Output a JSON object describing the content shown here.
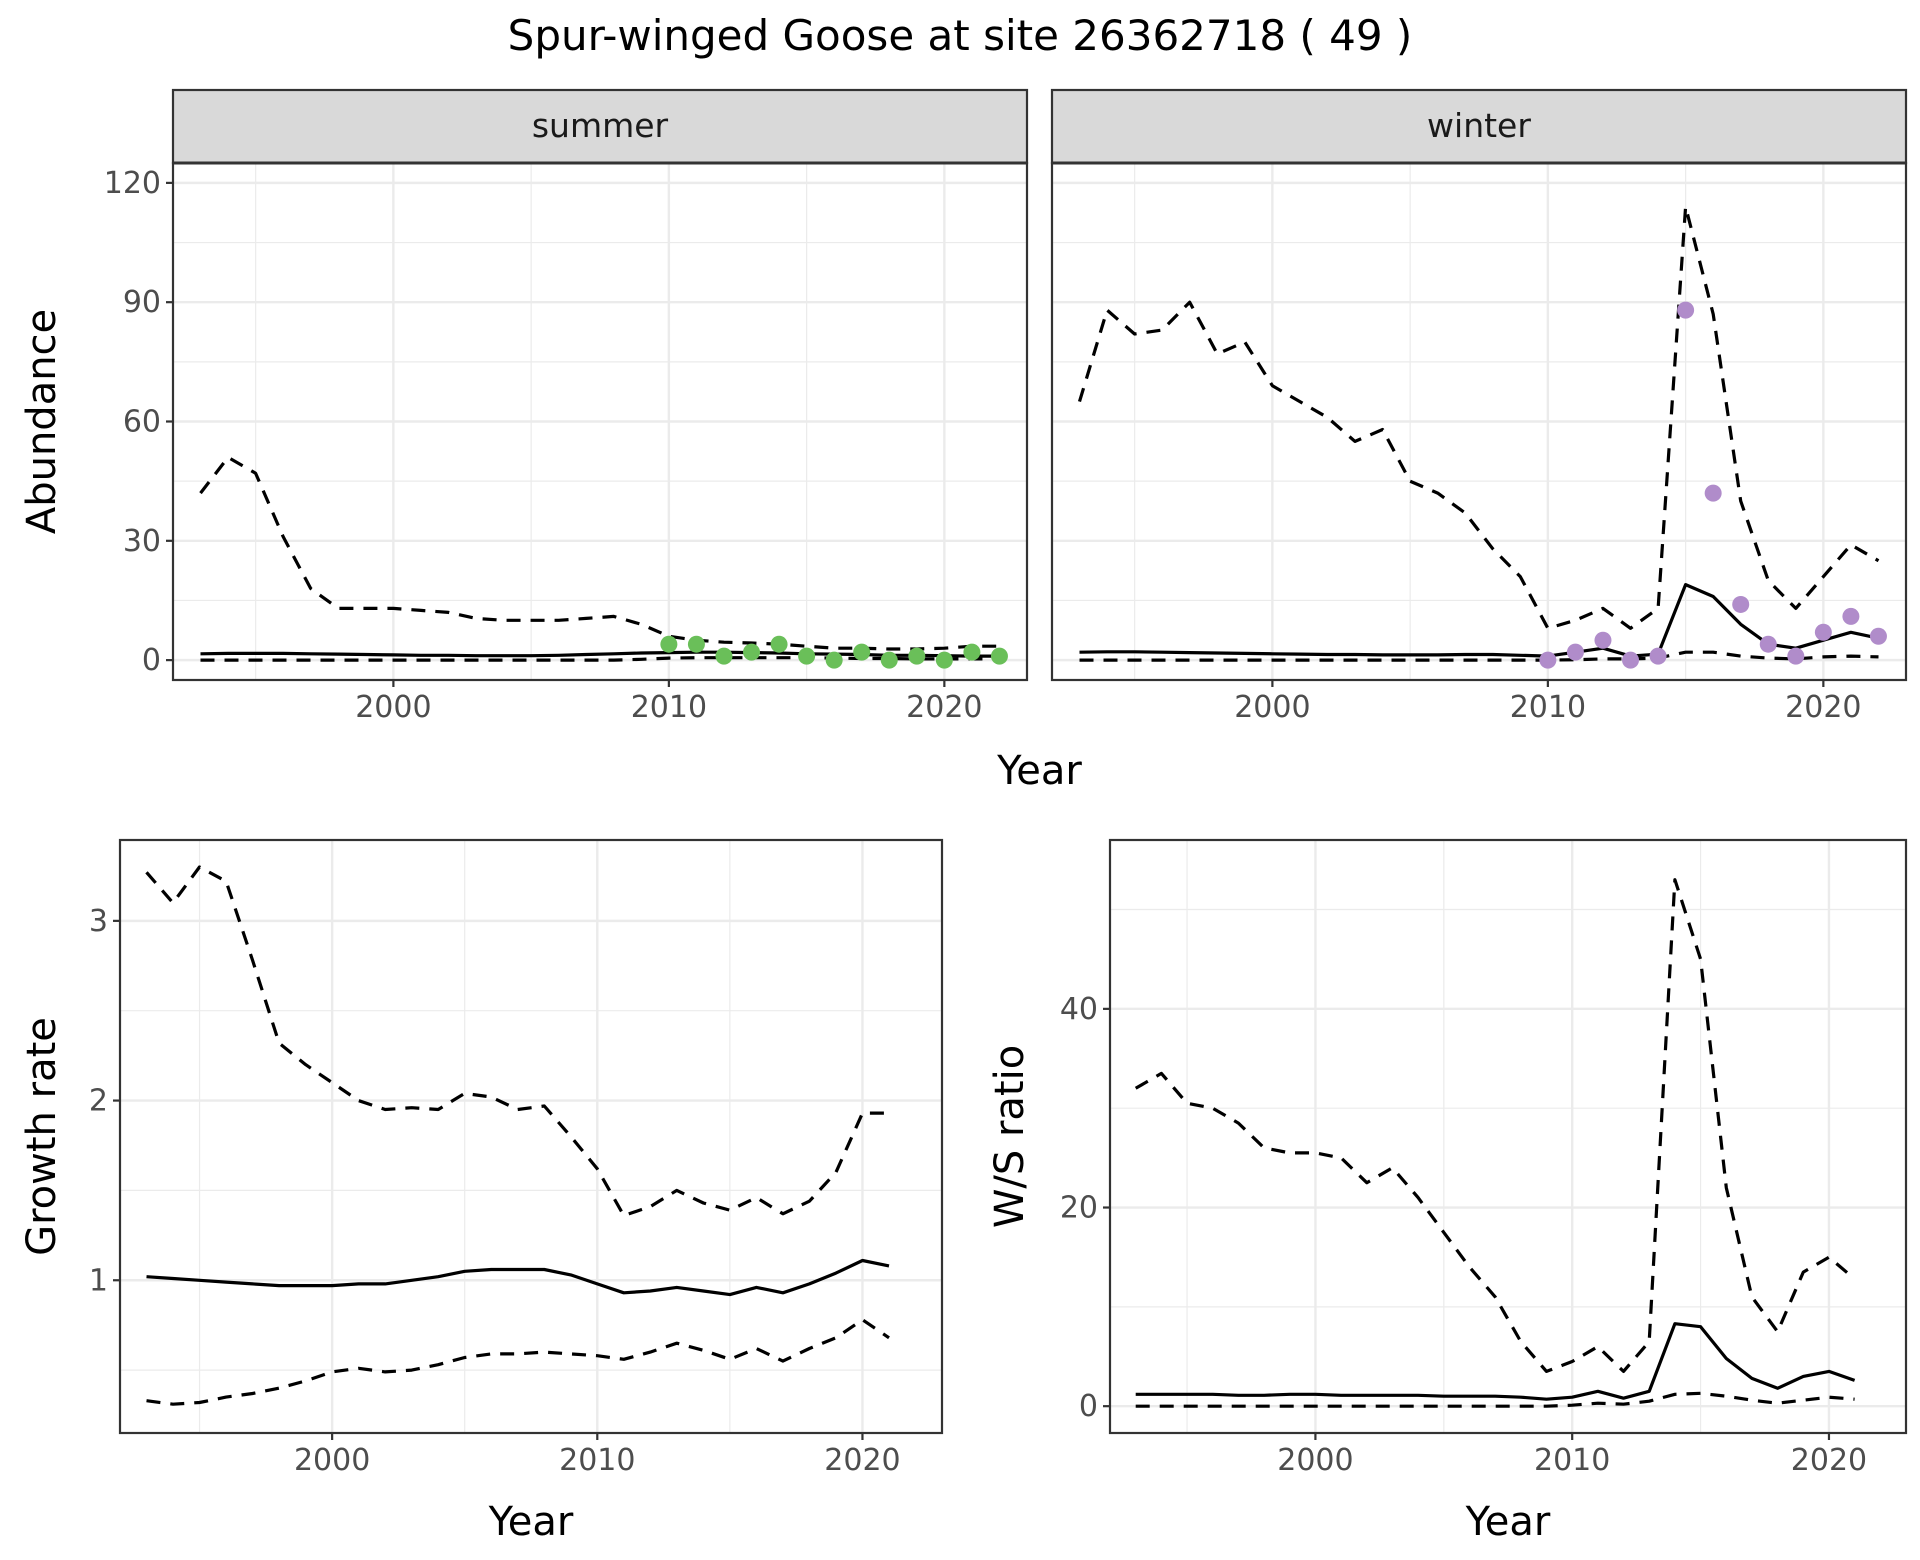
{
  "chart_data": {
    "title": "Spur-winged Goose at site 26362718 ( 49 )",
    "panels": [
      {
        "id": "abundance",
        "type": "line",
        "strips": [
          "summer",
          "winter"
        ],
        "xlabel": "Year",
        "ylabel": "Abundance",
        "xlim": [
          1992,
          2023
        ],
        "ylim": [
          -5,
          125
        ],
        "xticks": [
          2000,
          2010,
          2020
        ],
        "yticks": [
          0,
          30,
          60,
          90,
          120
        ],
        "facets": [
          {
            "strip": "summer",
            "point_color": "#6abf59",
            "years": [
              1993,
              1994,
              1995,
              1996,
              1997,
              1998,
              1999,
              2000,
              2001,
              2002,
              2003,
              2004,
              2005,
              2006,
              2007,
              2008,
              2009,
              2010,
              2011,
              2012,
              2013,
              2014,
              2015,
              2016,
              2017,
              2018,
              2019,
              2020,
              2021,
              2022
            ],
            "estimate": [
              1.6,
              1.7,
              1.7,
              1.7,
              1.6,
              1.5,
              1.4,
              1.3,
              1.2,
              1.2,
              1.1,
              1.1,
              1.1,
              1.2,
              1.4,
              1.6,
              1.8,
              1.9,
              2.0,
              2.0,
              1.9,
              1.8,
              1.6,
              1.5,
              1.4,
              1.2,
              1.2,
              1.1,
              1.0,
              1.0
            ],
            "lower": [
              0,
              0,
              0,
              0,
              0,
              0,
              0,
              0,
              0,
              0,
              0,
              0,
              0,
              0,
              0,
              0,
              0.2,
              0.5,
              0.6,
              0.6,
              0.6,
              0.6,
              0.6,
              0.5,
              0.4,
              0.4,
              0.3,
              0.3,
              0.3,
              0.3
            ],
            "upper": [
              42,
              51,
              47,
              31,
              18,
              13,
              13,
              13,
              12.5,
              12,
              10.5,
              10,
              10,
              10,
              10.5,
              11,
              9,
              6,
              5,
              4.5,
              4.3,
              4,
              3.5,
              3,
              3,
              2.8,
              2.8,
              3,
              3.5,
              3.5
            ],
            "obs_years": [
              2010,
              2011,
              2012,
              2013,
              2014,
              2015,
              2016,
              2017,
              2018,
              2019,
              2020,
              2021,
              2022
            ],
            "observed": [
              4,
              4,
              1,
              2,
              4,
              1,
              0,
              2,
              0,
              1,
              0,
              2,
              1
            ]
          },
          {
            "strip": "winter",
            "point_color": "#b08cca",
            "years": [
              1993,
              1994,
              1995,
              1996,
              1997,
              1998,
              1999,
              2000,
              2001,
              2002,
              2003,
              2004,
              2005,
              2006,
              2007,
              2008,
              2009,
              2010,
              2011,
              2012,
              2013,
              2014,
              2015,
              2016,
              2017,
              2018,
              2019,
              2020,
              2021,
              2022
            ],
            "estimate": [
              2.0,
              2.1,
              2.1,
              2.0,
              1.9,
              1.8,
              1.7,
              1.6,
              1.5,
              1.4,
              1.4,
              1.3,
              1.3,
              1.3,
              1.4,
              1.4,
              1.2,
              1.0,
              2.0,
              3.0,
              1.0,
              1.5,
              19,
              16,
              9,
              4,
              3,
              5,
              7,
              5.5
            ],
            "lower": [
              0,
              0,
              0,
              0,
              0,
              0,
              0,
              0,
              0,
              0,
              0,
              0,
              0,
              0,
              0,
              0,
              0,
              0,
              0.1,
              0.3,
              0.3,
              0.5,
              2,
              2,
              1,
              0.5,
              0.3,
              0.8,
              1,
              0.8
            ],
            "upper": [
              65,
              88,
              82,
              83,
              90,
              77,
              80,
              69,
              65,
              61,
              55,
              58,
              45,
              42,
              37,
              28,
              21,
              8,
              10,
              13,
              8,
              13,
              114,
              87,
              40,
              20,
              13,
              21,
              29,
              25
            ],
            "obs_years": [
              2010,
              2011,
              2012,
              2013,
              2014,
              2015,
              2016,
              2017,
              2018,
              2019,
              2020,
              2021,
              2022
            ],
            "observed": [
              0,
              2,
              5,
              0,
              1,
              88,
              42,
              14,
              4,
              1,
              7,
              11,
              6
            ]
          }
        ]
      },
      {
        "id": "growth",
        "type": "line",
        "xlabel": "Year",
        "ylabel": "Growth rate",
        "xlim": [
          1992,
          2023
        ],
        "ylim": [
          0.15,
          3.45
        ],
        "xticks": [
          2000,
          2010,
          2020
        ],
        "yticks": [
          1,
          2,
          3
        ],
        "years": [
          1993,
          1994,
          1995,
          1996,
          1997,
          1998,
          1999,
          2000,
          2001,
          2002,
          2003,
          2004,
          2005,
          2006,
          2007,
          2008,
          2009,
          2010,
          2011,
          2012,
          2013,
          2014,
          2015,
          2016,
          2017,
          2018,
          2019,
          2020,
          2021
        ],
        "estimate": [
          1.02,
          1.01,
          1.0,
          0.99,
          0.98,
          0.97,
          0.97,
          0.97,
          0.98,
          0.98,
          1.0,
          1.02,
          1.05,
          1.06,
          1.06,
          1.06,
          1.03,
          0.98,
          0.93,
          0.94,
          0.96,
          0.94,
          0.92,
          0.96,
          0.93,
          0.98,
          1.04,
          1.11,
          1.08
        ],
        "lower": [
          0.33,
          0.31,
          0.32,
          0.35,
          0.37,
          0.4,
          0.44,
          0.49,
          0.51,
          0.49,
          0.5,
          0.53,
          0.57,
          0.59,
          0.59,
          0.6,
          0.59,
          0.58,
          0.56,
          0.6,
          0.65,
          0.61,
          0.56,
          0.62,
          0.55,
          0.62,
          0.68,
          0.78,
          0.68
        ],
        "upper": [
          3.27,
          3.1,
          3.3,
          3.22,
          2.78,
          2.32,
          2.2,
          2.1,
          2.0,
          1.95,
          1.96,
          1.95,
          2.04,
          2.02,
          1.95,
          1.97,
          1.8,
          1.62,
          1.36,
          1.41,
          1.5,
          1.43,
          1.39,
          1.46,
          1.37,
          1.44,
          1.6,
          1.93,
          1.93
        ]
      },
      {
        "id": "ratio",
        "type": "line",
        "xlabel": "Year",
        "ylabel": "W/S ratio",
        "xlim": [
          1992,
          2023
        ],
        "ylim": [
          -2.7,
          57
        ],
        "xticks": [
          2000,
          2010,
          2020
        ],
        "yticks": [
          0,
          20,
          40
        ],
        "years": [
          1993,
          1994,
          1995,
          1996,
          1997,
          1998,
          1999,
          2000,
          2001,
          2002,
          2003,
          2004,
          2005,
          2006,
          2007,
          2008,
          2009,
          2010,
          2011,
          2012,
          2013,
          2014,
          2015,
          2016,
          2017,
          2018,
          2019,
          2020,
          2021
        ],
        "estimate": [
          1.2,
          1.2,
          1.2,
          1.2,
          1.1,
          1.1,
          1.2,
          1.2,
          1.1,
          1.1,
          1.1,
          1.1,
          1.0,
          1.0,
          1.0,
          0.9,
          0.7,
          0.9,
          1.5,
          0.8,
          1.5,
          8.3,
          8.0,
          4.8,
          2.8,
          1.8,
          3.0,
          3.5,
          2.6
        ],
        "lower": [
          0,
          0,
          0,
          0,
          0,
          0,
          0,
          0,
          0,
          0,
          0,
          0,
          0,
          0,
          0,
          0,
          0,
          0.1,
          0.3,
          0.2,
          0.5,
          1.2,
          1.3,
          1.0,
          0.6,
          0.3,
          0.6,
          0.9,
          0.7
        ],
        "upper": [
          32,
          33.5,
          30.5,
          30,
          28.5,
          26,
          25.5,
          25.5,
          25,
          22.5,
          24,
          21,
          17.5,
          14,
          11,
          6.5,
          3.5,
          4.5,
          6,
          3.5,
          6.5,
          53,
          45,
          22,
          11,
          7.5,
          13.5,
          15,
          12.8
        ]
      }
    ]
  }
}
